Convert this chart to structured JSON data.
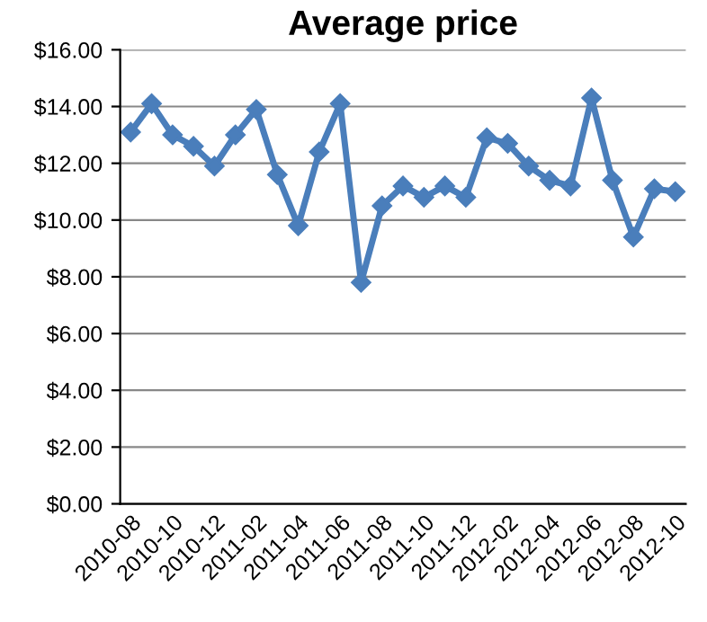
{
  "chart_data": {
    "type": "line",
    "title": "Average price",
    "categories": [
      "2010-08",
      null,
      "2010-10",
      null,
      "2010-12",
      null,
      "2011-02",
      null,
      "2011-04",
      null,
      "2011-06",
      null,
      "2011-08",
      null,
      "2011-10",
      null,
      "2011-12",
      null,
      "2012-02",
      null,
      "2012-04",
      null,
      "2012-06",
      null,
      "2012-08",
      null,
      "2012-10"
    ],
    "series": [
      {
        "color": "#4a7ebb",
        "values": [
          13.1,
          14.1,
          13.0,
          12.6,
          11.9,
          13.0,
          13.9,
          11.6,
          9.8,
          12.4,
          14.1,
          7.8,
          10.5,
          11.2,
          10.8,
          11.2,
          10.8,
          12.9,
          12.7,
          11.9,
          11.4,
          11.2,
          14.3,
          11.4,
          9.4,
          11.1,
          11.0
        ]
      }
    ],
    "ylim": [
      0,
      16
    ],
    "yticks": [
      {
        "value": 0,
        "label": "$0.00"
      },
      {
        "value": 2,
        "label": "$2.00"
      },
      {
        "value": 4,
        "label": "$4.00"
      },
      {
        "value": 6,
        "label": "$6.00"
      },
      {
        "value": 8,
        "label": "$8.00"
      },
      {
        "value": 10,
        "label": "$10.00"
      },
      {
        "value": 12,
        "label": "$12.00"
      },
      {
        "value": 14,
        "label": "$14.00"
      },
      {
        "value": 16,
        "label": "$16.00"
      }
    ],
    "grid": "y",
    "marker": "diamond",
    "line_style": "solid",
    "legend": false
  }
}
